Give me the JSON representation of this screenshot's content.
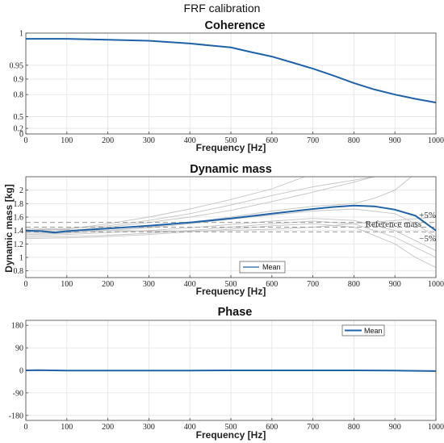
{
  "figure_title": "FRF calibration",
  "colors": {
    "mean": "#1f62a8",
    "gray": "#c4c4c4",
    "grid": "#e3e3e3",
    "axis": "#444444",
    "dashed": "#999999"
  },
  "chart_data": [
    {
      "type": "line",
      "title": "Coherence",
      "xlabel": "Frequency [Hz]",
      "ylabel": "",
      "xlim": [
        0,
        1000
      ],
      "ylim": [
        0,
        1
      ],
      "xticks": [
        0,
        100,
        200,
        300,
        400,
        500,
        600,
        700,
        800,
        900,
        1000
      ],
      "yticks": [
        "0",
        "0.2",
        "0.5",
        "0.8",
        "0.9",
        "0.95",
        "1"
      ],
      "grid": true,
      "series": [
        {
          "x": [
            0,
            100,
            200,
            300,
            400,
            500,
            550,
            600,
            650,
            700,
            750,
            800,
            850,
            900,
            950,
            1000
          ],
          "y": [
            0.995,
            0.995,
            0.994,
            0.993,
            0.99,
            0.985,
            0.978,
            0.97,
            0.957,
            0.94,
            0.915,
            0.88,
            0.84,
            0.8,
            0.76,
            0.72
          ]
        }
      ]
    },
    {
      "type": "line",
      "title": "Dynamic mass",
      "xlabel": "Frequency [Hz]",
      "ylabel": "Dynamic mass [kg]",
      "xlim": [
        0,
        1000
      ],
      "ylim": [
        0.7,
        2.2
      ],
      "xticks": [
        0,
        100,
        200,
        300,
        400,
        500,
        600,
        700,
        800,
        900,
        1000
      ],
      "yticks": [
        "0.8",
        "1",
        "1.2",
        "1.4",
        "1.6",
        "1.8",
        "2"
      ],
      "grid": true,
      "annotations": {
        "upper": "+5%",
        "reference": "Reference mass",
        "lower": "−5%"
      },
      "reference_lines": [
        1.52,
        1.45,
        1.38
      ],
      "legend": {
        "labels": [
          "Mean"
        ],
        "placement": "bottom-center"
      },
      "series": [
        {
          "name": "Mean",
          "x": [
            0,
            40,
            70,
            100,
            150,
            200,
            300,
            400,
            500,
            600,
            700,
            750,
            800,
            850,
            900,
            950,
            1000
          ],
          "y": [
            1.4,
            1.39,
            1.37,
            1.39,
            1.41,
            1.43,
            1.47,
            1.52,
            1.58,
            1.65,
            1.72,
            1.75,
            1.77,
            1.76,
            1.71,
            1.62,
            1.4
          ]
        }
      ],
      "individual_traces": [
        {
          "x": [
            0,
            100,
            200,
            300,
            400,
            500,
            600,
            700,
            800,
            850,
            880,
            900,
            920
          ],
          "y": [
            1.42,
            1.43,
            1.47,
            1.55,
            1.65,
            1.78,
            1.92,
            2.05,
            2.15,
            2.2,
            2.25,
            2.3,
            2.35
          ]
        },
        {
          "x": [
            0,
            100,
            200,
            300,
            400,
            500,
            600,
            680
          ],
          "y": [
            1.4,
            1.42,
            1.5,
            1.6,
            1.72,
            1.86,
            2.02,
            2.2
          ]
        },
        {
          "x": [
            0,
            100,
            200,
            300,
            400,
            500,
            600,
            700,
            800,
            850
          ],
          "y": [
            1.38,
            1.4,
            1.45,
            1.52,
            1.6,
            1.7,
            1.83,
            1.97,
            2.12,
            2.2
          ]
        },
        {
          "x": [
            0,
            100,
            200,
            300,
            400,
            500,
            600,
            700,
            800,
            900,
            950,
            1000
          ],
          "y": [
            1.36,
            1.37,
            1.4,
            1.44,
            1.5,
            1.57,
            1.63,
            1.69,
            1.72,
            1.65,
            1.5,
            1.3
          ]
        },
        {
          "x": [
            0,
            100,
            200,
            300,
            400,
            500,
            600,
            700,
            800,
            850,
            900,
            940
          ],
          "y": [
            1.34,
            1.36,
            1.4,
            1.45,
            1.52,
            1.6,
            1.69,
            1.76,
            1.8,
            1.88,
            2.0,
            2.2
          ]
        },
        {
          "x": [
            0,
            100,
            200,
            300,
            400,
            500,
            600,
            700,
            800,
            900,
            950,
            1000
          ],
          "y": [
            1.3,
            1.31,
            1.33,
            1.36,
            1.4,
            1.45,
            1.5,
            1.54,
            1.5,
            1.3,
            1.15,
            1.0
          ]
        },
        {
          "x": [
            0,
            100,
            200,
            300,
            400,
            500,
            600,
            700,
            800,
            900,
            950,
            1000
          ],
          "y": [
            1.28,
            1.29,
            1.31,
            1.34,
            1.38,
            1.42,
            1.47,
            1.5,
            1.45,
            1.2,
            1.0,
            0.85
          ]
        },
        {
          "x": [
            0,
            100,
            200,
            300,
            400,
            500,
            600,
            700,
            800,
            900,
            950,
            1000
          ],
          "y": [
            1.32,
            1.34,
            1.37,
            1.4,
            1.44,
            1.49,
            1.54,
            1.58,
            1.55,
            1.4,
            1.25,
            1.1
          ]
        },
        {
          "x": [
            0,
            100,
            200,
            300,
            400,
            500,
            600,
            700,
            800,
            900,
            1000
          ],
          "y": [
            1.42,
            1.41,
            1.4,
            1.39,
            1.39,
            1.4,
            1.42,
            1.45,
            1.5,
            1.55,
            1.6
          ]
        }
      ]
    },
    {
      "type": "line",
      "title": "Phase",
      "xlabel": "Frequency [Hz]",
      "ylabel": "",
      "xlim": [
        0,
        1000
      ],
      "ylim": [
        -200,
        200
      ],
      "xticks": [
        0,
        100,
        200,
        300,
        400,
        500,
        600,
        700,
        800,
        900,
        1000
      ],
      "yticks": [
        "-180",
        "-90",
        "0",
        "90",
        "180"
      ],
      "grid": true,
      "legend": {
        "labels": [
          "Mean"
        ],
        "placement": "top-right"
      },
      "series": [
        {
          "name": "Mean",
          "x": [
            0,
            30,
            100,
            200,
            300,
            400,
            500,
            600,
            700,
            800,
            900,
            1000
          ],
          "y": [
            0,
            1,
            -1,
            -1,
            -0.5,
            -0.5,
            0,
            0,
            0,
            0,
            -1,
            -3
          ]
        }
      ]
    }
  ]
}
